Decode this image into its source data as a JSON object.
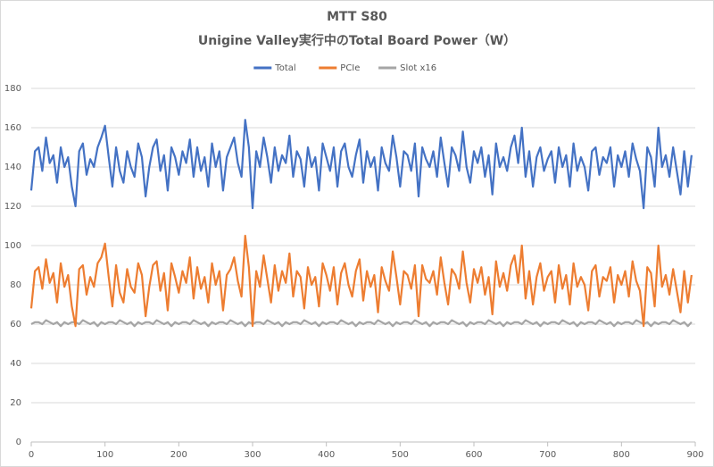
{
  "chart_data": {
    "type": "line",
    "title": "MTT S80",
    "subtitle": "Unigine Valley実行中のTotal Board Power（W）",
    "x": [
      0,
      5,
      10,
      15,
      20,
      25,
      30,
      35,
      40,
      45,
      50,
      55,
      60,
      65,
      70,
      75,
      80,
      85,
      90,
      95,
      100,
      105,
      110,
      115,
      120,
      125,
      130,
      135,
      140,
      145,
      150,
      155,
      160,
      165,
      170,
      175,
      180,
      185,
      190,
      195,
      200,
      205,
      210,
      215,
      220,
      225,
      230,
      235,
      240,
      245,
      250,
      255,
      260,
      265,
      270,
      275,
      280,
      285,
      290,
      295,
      300,
      305,
      310,
      315,
      320,
      325,
      330,
      335,
      340,
      345,
      350,
      355,
      360,
      365,
      370,
      375,
      380,
      385,
      390,
      395,
      400,
      405,
      410,
      415,
      420,
      425,
      430,
      435,
      440,
      445,
      450,
      455,
      460,
      465,
      470,
      475,
      480,
      485,
      490,
      495,
      500,
      505,
      510,
      515,
      520,
      525,
      530,
      535,
      540,
      545,
      550,
      555,
      560,
      565,
      570,
      575,
      580,
      585,
      590,
      595,
      600,
      605,
      610,
      615,
      620,
      625,
      630,
      635,
      640,
      645,
      650,
      655,
      660,
      665,
      670,
      675,
      680,
      685,
      690,
      695,
      700,
      705,
      710,
      715,
      720,
      725,
      730,
      735,
      740,
      745,
      750,
      755,
      760,
      765,
      770,
      775,
      780,
      785,
      790,
      795,
      800,
      805,
      810,
      815,
      820,
      825,
      830,
      835,
      840,
      845,
      850,
      855,
      860,
      865,
      870,
      875,
      880,
      885,
      890,
      895
    ],
    "series": [
      {
        "name": "Total",
        "color": "#4472c4",
        "values": [
          128,
          148,
          150,
          138,
          155,
          142,
          146,
          132,
          150,
          140,
          145,
          130,
          120,
          148,
          152,
          136,
          144,
          140,
          150,
          155,
          161,
          145,
          130,
          150,
          138,
          132,
          148,
          140,
          135,
          152,
          145,
          125,
          140,
          150,
          154,
          138,
          146,
          128,
          150,
          145,
          136,
          148,
          142,
          154,
          135,
          150,
          138,
          145,
          130,
          152,
          140,
          148,
          128,
          145,
          150,
          155,
          142,
          135,
          164,
          150,
          119,
          148,
          140,
          155,
          145,
          132,
          150,
          138,
          146,
          142,
          156,
          135,
          148,
          144,
          130,
          150,
          140,
          145,
          128,
          152,
          145,
          138,
          150,
          130,
          148,
          152,
          140,
          135,
          146,
          154,
          132,
          148,
          140,
          145,
          128,
          150,
          142,
          138,
          156,
          145,
          130,
          148,
          146,
          138,
          152,
          125,
          150,
          144,
          140,
          148,
          135,
          155,
          142,
          130,
          150,
          146,
          138,
          158,
          140,
          132,
          148,
          142,
          150,
          135,
          146,
          126,
          152,
          140,
          145,
          138,
          150,
          156,
          142,
          160,
          135,
          148,
          130,
          145,
          150,
          138,
          144,
          148,
          132,
          150,
          140,
          146,
          130,
          152,
          138,
          145,
          140,
          128,
          148,
          150,
          136,
          145,
          142,
          150,
          130,
          146,
          140,
          148,
          135,
          152,
          144,
          138,
          119,
          150,
          145,
          130,
          160,
          140,
          146,
          135,
          150,
          138,
          126,
          148,
          130,
          146
        ]
      },
      {
        "name": "PCIe",
        "color": "#ed7d31",
        "values": [
          68,
          87,
          89,
          78,
          93,
          81,
          86,
          71,
          91,
          79,
          85,
          69,
          59,
          88,
          90,
          75,
          84,
          79,
          91,
          94,
          101,
          84,
          69,
          90,
          76,
          71,
          88,
          79,
          76,
          91,
          85,
          64,
          79,
          90,
          92,
          77,
          86,
          67,
          91,
          84,
          76,
          87,
          81,
          94,
          73,
          89,
          78,
          84,
          71,
          91,
          80,
          87,
          67,
          85,
          88,
          94,
          82,
          74,
          105,
          89,
          59,
          87,
          79,
          95,
          83,
          71,
          90,
          77,
          87,
          81,
          96,
          74,
          87,
          84,
          68,
          89,
          80,
          84,
          69,
          91,
          85,
          77,
          89,
          70,
          86,
          91,
          80,
          74,
          87,
          93,
          72,
          87,
          79,
          85,
          66,
          89,
          82,
          77,
          97,
          84,
          70,
          87,
          85,
          78,
          90,
          64,
          90,
          83,
          81,
          87,
          75,
          94,
          81,
          70,
          88,
          85,
          78,
          97,
          81,
          71,
          88,
          81,
          89,
          75,
          84,
          65,
          92,
          79,
          86,
          77,
          90,
          95,
          81,
          100,
          73,
          87,
          70,
          84,
          91,
          77,
          84,
          87,
          71,
          90,
          78,
          85,
          70,
          91,
          79,
          84,
          80,
          67,
          87,
          90,
          74,
          84,
          82,
          89,
          71,
          85,
          80,
          87,
          74,
          92,
          82,
          77,
          59,
          89,
          86,
          69,
          100,
          79,
          85,
          75,
          88,
          77,
          66,
          87,
          71,
          85
        ]
      },
      {
        "name": "Slot x16",
        "color": "#a5a5a5",
        "values": [
          60,
          61,
          61,
          60,
          62,
          61,
          60,
          61,
          59,
          61,
          60,
          61,
          61,
          60,
          62,
          61,
          60,
          61,
          59,
          61,
          60,
          61,
          61,
          60,
          62,
          61,
          60,
          61,
          59,
          61,
          60,
          61,
          61,
          60,
          62,
          61,
          60,
          61,
          59,
          61,
          60,
          61,
          61,
          60,
          62,
          61,
          60,
          61,
          59,
          61,
          60,
          61,
          61,
          60,
          62,
          61,
          60,
          61,
          59,
          61,
          60,
          61,
          61,
          60,
          62,
          61,
          60,
          61,
          59,
          61,
          60,
          61,
          61,
          60,
          62,
          61,
          60,
          61,
          59,
          61,
          60,
          61,
          61,
          60,
          62,
          61,
          60,
          61,
          59,
          61,
          60,
          61,
          61,
          60,
          62,
          61,
          60,
          61,
          59,
          61,
          60,
          61,
          61,
          60,
          62,
          61,
          60,
          61,
          59,
          61,
          60,
          61,
          61,
          60,
          62,
          61,
          60,
          61,
          59,
          61,
          60,
          61,
          61,
          60,
          62,
          61,
          60,
          61,
          59,
          61,
          60,
          61,
          61,
          60,
          62,
          61,
          60,
          61,
          59,
          61,
          60,
          61,
          61,
          60,
          62,
          61,
          60,
          61,
          59,
          61,
          60,
          61,
          61,
          60,
          62,
          61,
          60,
          61,
          59,
          61,
          60,
          61,
          61,
          60,
          62,
          61,
          60,
          61,
          59,
          61,
          60,
          61,
          61,
          60,
          62,
          61,
          60,
          61,
          59,
          61
        ]
      }
    ],
    "xlim": [
      0,
      900
    ],
    "xticks": [
      0,
      100,
      200,
      300,
      400,
      500,
      600,
      700,
      800,
      900
    ],
    "ylim": [
      0,
      180
    ],
    "yticks": [
      0,
      20,
      40,
      60,
      80,
      100,
      120,
      140,
      160,
      180
    ],
    "grid": true,
    "legend": "top"
  }
}
